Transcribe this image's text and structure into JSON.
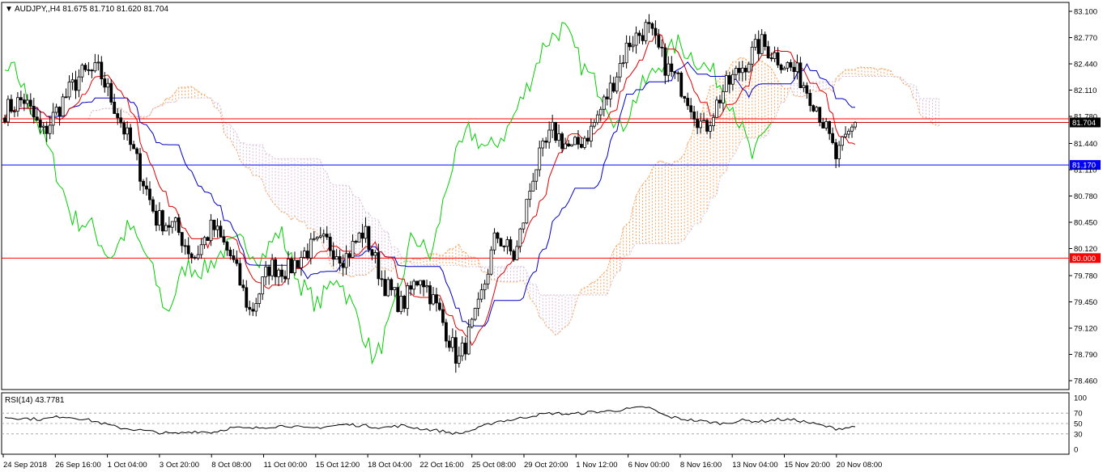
{
  "chart_data": {
    "type": "candlestick",
    "symbol_header": "AUDJPY,,H4  81.675 81.710 81.620 81.704",
    "timeframe": "H4",
    "last_ohlc": {
      "open": 81.675,
      "high": 81.71,
      "low": 81.62,
      "close": 81.704
    },
    "price_axis": {
      "ticks": [
        "83.100",
        "82.770",
        "82.440",
        "82.110",
        "81.780",
        "81.440",
        "81.110",
        "80.780",
        "80.450",
        "80.120",
        "79.780",
        "79.450",
        "79.120",
        "78.790",
        "78.460"
      ],
      "range": [
        78.46,
        83.1
      ]
    },
    "time_axis": {
      "labels": [
        "24 Sep 2018",
        "26 Sep 16:00",
        "1 Oct 04:00",
        "3 Oct 20:00",
        "8 Oct 08:00",
        "11 Oct 00:00",
        "15 Oct 12:00",
        "18 Oct 04:00",
        "22 Oct 16:00",
        "25 Oct 08:00",
        "29 Oct 20:00",
        "1 Nov 12:00",
        "6 Nov 00:00",
        "8 Nov 16:00",
        "13 Nov 04:00",
        "15 Nov 20:00",
        "20 Nov 08:00"
      ]
    },
    "horizontal_lines": [
      {
        "price": 81.704,
        "label": "81.704",
        "color": "#000000"
      },
      {
        "price": 81.17,
        "label": "81.170",
        "color": "#0000ff"
      },
      {
        "price": 80.0,
        "label": "80.000",
        "color": "#ff0000"
      },
      {
        "price": 81.75,
        "label": "",
        "color": "#ff0000"
      }
    ],
    "price_path": [
      {
        "date": "24 Sep 2018",
        "close": 81.85
      },
      {
        "date": "25 Sep",
        "close": 82.0
      },
      {
        "date": "26 Sep 16:00",
        "close": 81.55
      },
      {
        "date": "27 Sep",
        "close": 81.95
      },
      {
        "date": "28 Sep",
        "close": 82.3
      },
      {
        "date": "1 Oct 04:00",
        "close": 82.35
      },
      {
        "date": "2 Oct",
        "close": 81.8
      },
      {
        "date": "3 Oct 20:00",
        "close": 81.2
      },
      {
        "date": "4 Oct",
        "close": 80.5
      },
      {
        "date": "5 Oct",
        "close": 80.4
      },
      {
        "date": "8 Oct 08:00",
        "close": 80.0
      },
      {
        "date": "9 Oct",
        "close": 80.4
      },
      {
        "date": "10 Oct",
        "close": 80.0
      },
      {
        "date": "11 Oct 00:00",
        "close": 79.3
      },
      {
        "date": "12 Oct",
        "close": 79.9
      },
      {
        "date": "15 Oct 12:00",
        "close": 79.85
      },
      {
        "date": "16 Oct",
        "close": 80.1
      },
      {
        "date": "17 Oct",
        "close": 80.2
      },
      {
        "date": "18 Oct 04:00",
        "close": 80.0
      },
      {
        "date": "19 Oct",
        "close": 80.35
      },
      {
        "date": "22 Oct 16:00",
        "close": 79.7
      },
      {
        "date": "23 Oct",
        "close": 79.4
      },
      {
        "date": "24 Oct",
        "close": 79.8
      },
      {
        "date": "25 Oct 08:00",
        "close": 79.3
      },
      {
        "date": "26 Oct",
        "close": 78.7
      },
      {
        "date": "29 Oct",
        "close": 79.3
      },
      {
        "date": "29 Oct 20:00",
        "close": 80.3
      },
      {
        "date": "30 Oct",
        "close": 80.0
      },
      {
        "date": "31 Oct",
        "close": 81.1
      },
      {
        "date": "1 Nov 12:00",
        "close": 81.6
      },
      {
        "date": "2 Nov",
        "close": 81.35
      },
      {
        "date": "5 Nov",
        "close": 81.6
      },
      {
        "date": "6 Nov 00:00",
        "close": 82.1
      },
      {
        "date": "7 Nov",
        "close": 82.7
      },
      {
        "date": "8 Nov",
        "close": 82.9
      },
      {
        "date": "8 Nov 16:00",
        "close": 82.4
      },
      {
        "date": "9 Nov",
        "close": 82.1
      },
      {
        "date": "12 Nov",
        "close": 81.6
      },
      {
        "date": "13 Nov 04:00",
        "close": 82.1
      },
      {
        "date": "14 Nov",
        "close": 82.4
      },
      {
        "date": "15 Nov",
        "close": 82.7
      },
      {
        "date": "15 Nov 20:00",
        "close": 82.5
      },
      {
        "date": "16 Nov",
        "close": 82.3
      },
      {
        "date": "19 Nov",
        "close": 81.9
      },
      {
        "date": "20 Nov",
        "close": 81.25
      },
      {
        "date": "20 Nov 08:00",
        "close": 81.704
      }
    ],
    "indicators": [
      "Ichimoku (tenkan red, kijun blue, chikou green, cloud sand/thistle)"
    ],
    "sub_panel": {
      "title": "RSI(14) 43.7781",
      "name": "RSI(14)",
      "value": 43.7781,
      "ticks": [
        "100",
        "70",
        "50",
        "30",
        "0"
      ],
      "range": [
        0,
        100
      ],
      "levels": [
        70,
        50,
        30
      ],
      "rsi_path": [
        62,
        60,
        58,
        64,
        60,
        52,
        42,
        38,
        33,
        30,
        35,
        33,
        42,
        40,
        44,
        46,
        40,
        44,
        48,
        46,
        42,
        46,
        40,
        36,
        30,
        40,
        54,
        58,
        66,
        70,
        68,
        72,
        74,
        78,
        82,
        64,
        58,
        54,
        50,
        56,
        54,
        58,
        56,
        48,
        40,
        43.7781
      ]
    }
  },
  "colors": {
    "background": "#ffffff",
    "bull_candle": "#000000",
    "bear_candle": "#000000",
    "tenkan": "#e00000",
    "kijun": "#0000c8",
    "chikou": "#00d000",
    "cloud_up": "#f4a460",
    "cloud_down": "#d8bfd8",
    "resistance": "#ff0000",
    "support": "#0000ff"
  }
}
